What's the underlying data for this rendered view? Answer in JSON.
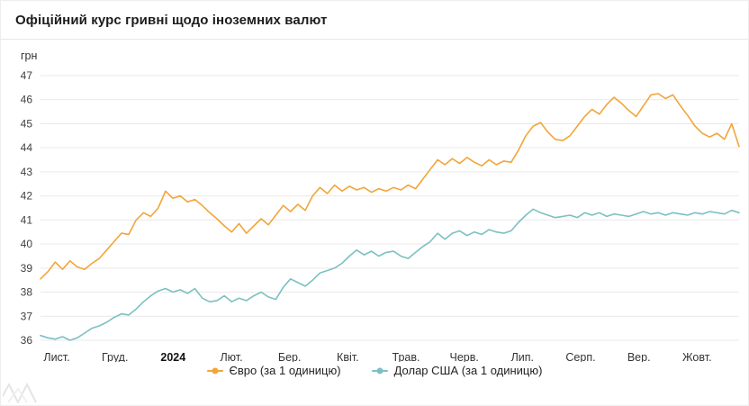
{
  "title": "Офіційний курс гривні щодо іноземних валют",
  "chart_data": {
    "type": "line",
    "title": "Офіційний курс гривні щодо іноземних валют",
    "ylabel": "грн",
    "ylim": [
      36,
      47
    ],
    "y_tick_step": 1,
    "grid": true,
    "legend_position": "bottom",
    "x_tick_labels": [
      "Лист.",
      "Груд.",
      "2024",
      "Лют.",
      "Бер.",
      "Квіт.",
      "Трав.",
      "Черв.",
      "Лип.",
      "Серп.",
      "Вер.",
      "Жовт."
    ],
    "emphasized_tick": "2024",
    "series": [
      {
        "name": "Євро (за 1 одиницю)",
        "color": "#f2a53a",
        "values": [
          38.55,
          38.85,
          39.25,
          38.95,
          39.3,
          39.05,
          38.95,
          39.2,
          39.4,
          39.75,
          40.1,
          40.45,
          40.4,
          41.0,
          41.3,
          41.15,
          41.5,
          42.2,
          41.9,
          42.0,
          41.75,
          41.85,
          41.6,
          41.3,
          41.05,
          40.75,
          40.5,
          40.85,
          40.45,
          40.75,
          41.05,
          40.8,
          41.2,
          41.6,
          41.35,
          41.65,
          41.4,
          42.0,
          42.35,
          42.1,
          42.45,
          42.2,
          42.4,
          42.25,
          42.35,
          42.15,
          42.3,
          42.2,
          42.35,
          42.25,
          42.45,
          42.3,
          42.7,
          43.1,
          43.5,
          43.3,
          43.55,
          43.35,
          43.6,
          43.4,
          43.25,
          43.5,
          43.3,
          43.45,
          43.4,
          43.9,
          44.5,
          44.9,
          45.05,
          44.65,
          44.35,
          44.3,
          44.5,
          44.9,
          45.3,
          45.6,
          45.4,
          45.8,
          46.1,
          45.85,
          45.55,
          45.3,
          45.75,
          46.2,
          46.25,
          46.05,
          46.2,
          45.75,
          45.35,
          44.9,
          44.6,
          44.45,
          44.6,
          44.35,
          45.0,
          44.05
        ]
      },
      {
        "name": "Долар США (за 1 одиницю)",
        "color": "#7cc0c2",
        "values": [
          36.2,
          36.1,
          36.05,
          36.15,
          36.0,
          36.1,
          36.3,
          36.5,
          36.6,
          36.75,
          36.95,
          37.1,
          37.05,
          37.3,
          37.6,
          37.85,
          38.05,
          38.15,
          38.0,
          38.1,
          37.95,
          38.15,
          37.75,
          37.6,
          37.65,
          37.85,
          37.6,
          37.75,
          37.65,
          37.85,
          38.0,
          37.8,
          37.7,
          38.2,
          38.55,
          38.4,
          38.25,
          38.5,
          38.8,
          38.9,
          39.0,
          39.2,
          39.5,
          39.75,
          39.55,
          39.7,
          39.5,
          39.65,
          39.7,
          39.5,
          39.4,
          39.65,
          39.9,
          40.1,
          40.45,
          40.2,
          40.45,
          40.55,
          40.35,
          40.5,
          40.4,
          40.6,
          40.5,
          40.45,
          40.55,
          40.9,
          41.2,
          41.45,
          41.3,
          41.2,
          41.1,
          41.15,
          41.2,
          41.1,
          41.3,
          41.2,
          41.3,
          41.15,
          41.25,
          41.2,
          41.15,
          41.25,
          41.35,
          41.25,
          41.3,
          41.2,
          41.3,
          41.25,
          41.2,
          41.3,
          41.25,
          41.35,
          41.3,
          41.25,
          41.4,
          41.3
        ]
      }
    ]
  },
  "colors": {
    "grid": "#e9e9e9",
    "text": "#333333"
  }
}
